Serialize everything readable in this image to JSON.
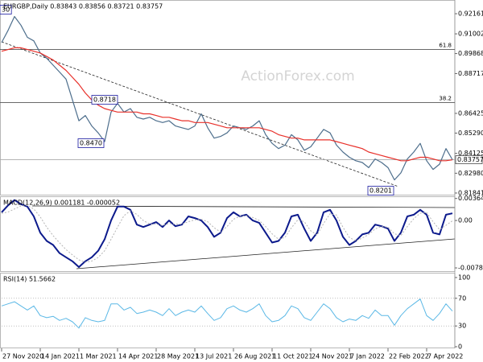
{
  "chart_data": [
    {
      "type": "line",
      "title": "EURGBP,Daily  0.83843 0.83856 0.83721 0.83757",
      "watermark": "ActionForex.com",
      "xlim": [
        0,
        70
      ],
      "ylim": [
        0.817,
        0.9295
      ],
      "yticks": [
        0.92161,
        0.91002,
        0.89868,
        0.88717,
        0.86425,
        {
          "value": 0.8529,
          "label": "0.85290"
        },
        0.84125,
        {
          "value": 0.8298,
          "label": "0.82980"
        },
        0.81841
      ],
      "last_price": 0.83757,
      "levels": [
        {
          "label": "61.8",
          "value": 0.901
        },
        {
          "label": "38.2",
          "value": 0.8705
        }
      ],
      "annotations": [
        "30",
        "0.8718",
        "0.8470",
        "0.8201"
      ],
      "series": [
        {
          "color": "#4d6e8c",
          "values": [
            0.905,
            0.912,
            0.92,
            0.915,
            0.908,
            0.906,
            0.899,
            0.896,
            0.892,
            0.888,
            0.884,
            0.872,
            0.86,
            0.863,
            0.857,
            0.853,
            0.848,
            0.865,
            0.87,
            0.865,
            0.867,
            0.862,
            0.861,
            0.862,
            0.86,
            0.859,
            0.86,
            0.857,
            0.856,
            0.855,
            0.857,
            0.864,
            0.856,
            0.85,
            0.851,
            0.853,
            0.857,
            0.856,
            0.855,
            0.857,
            0.86,
            0.852,
            0.847,
            0.844,
            0.846,
            0.852,
            0.849,
            0.843,
            0.845,
            0.85,
            0.855,
            0.853,
            0.846,
            0.842,
            0.839,
            0.837,
            0.836,
            0.833,
            0.838,
            0.836,
            0.833,
            0.826,
            0.83,
            0.838,
            0.842,
            0.847,
            0.837,
            0.832,
            0.835,
            0.844,
            0.8376
          ]
        },
        {
          "color": "#e8302a",
          "values": [
            0.9,
            0.901,
            0.902,
            0.902,
            0.901,
            0.9,
            0.899,
            0.897,
            0.895,
            0.892,
            0.889,
            0.885,
            0.881,
            0.876,
            0.872,
            0.869,
            0.867,
            0.866,
            0.865,
            0.865,
            0.865,
            0.865,
            0.864,
            0.864,
            0.863,
            0.862,
            0.862,
            0.861,
            0.86,
            0.86,
            0.859,
            0.859,
            0.859,
            0.858,
            0.857,
            0.856,
            0.856,
            0.856,
            0.856,
            0.856,
            0.856,
            0.855,
            0.854,
            0.852,
            0.851,
            0.85,
            0.85,
            0.849,
            0.849,
            0.849,
            0.849,
            0.849,
            0.848,
            0.847,
            0.846,
            0.845,
            0.844,
            0.842,
            0.841,
            0.84,
            0.839,
            0.838,
            0.837,
            0.837,
            0.838,
            0.839,
            0.839,
            0.838,
            0.837,
            0.837,
            0.8375
          ]
        }
      ]
    },
    {
      "type": "line",
      "title": "MACD(12,26,9) 0.001181 -0.000052",
      "xlim": [
        0,
        70
      ],
      "ylim": [
        -0.0085,
        0.004
      ],
      "yticks": [
        0.003641,
        {
          "value": 0,
          "label": "0.00"
        },
        -0.007839
      ],
      "series": [
        {
          "color": "#0c1a8c",
          "width": 2,
          "values": [
            0.00135,
            0.0025,
            0.00338,
            0.0027,
            0.0023,
            0.00068,
            -0.00203,
            -0.00338,
            -0.00405,
            -0.0054,
            -0.00608,
            -0.00675,
            -0.0077,
            -0.00675,
            -0.00608,
            -0.005,
            -0.0031,
            0,
            0.0023,
            0.0023,
            0.00176,
            -0.00068,
            -0.00108,
            -0.00068,
            -0.00027,
            -0.00108,
            0,
            -0.00095,
            -0.00068,
            0.00068,
            0.0004,
            0,
            -0.00108,
            -0.0027,
            -0.00203,
            0.0004,
            0.00135,
            0.00068,
            0.00095,
            0,
            -0.0004,
            -0.00203,
            -0.00365,
            -0.00338,
            -0.00203,
            0.00068,
            0.00095,
            -0.00135,
            -0.00338,
            -0.00203,
            0.00135,
            0.00176,
            0,
            -0.0027,
            -0.00405,
            -0.00338,
            -0.0023,
            -0.00203,
            -0.00068,
            -0.00095,
            -0.00135,
            -0.00338,
            -0.00203,
            0.00068,
            0.00095,
            0.00176,
            0.00095,
            -0.00203,
            -0.0023,
            0.00095,
            0.001181
          ]
        },
        {
          "color": "#b4b4b4",
          "width": 1,
          "dash": true,
          "values": [
            0.0012,
            0.0014,
            0.0019,
            0.0024,
            0.0025,
            0.0019,
            0.0006,
            -0.0011,
            -0.0025,
            -0.0037,
            -0.0048,
            -0.0057,
            -0.0065,
            -0.0069,
            -0.0067,
            -0.0061,
            -0.005,
            -0.0031,
            -0.0011,
            0.0008,
            0.0016,
            0.001,
            0,
            -0.0006,
            -0.0006,
            -0.0008,
            -0.0005,
            -0.0006,
            -0.0006,
            -0.0002,
            0.0001,
            0.0002,
            -0.0002,
            -0.0012,
            -0.0019,
            -0.001,
            0.0002,
            0.0007,
            0.0008,
            0.0005,
            0,
            -0.001,
            -0.0022,
            -0.0031,
            -0.0028,
            -0.0012,
            0.0001,
            -0.0002,
            -0.0017,
            -0.0024,
            -0.0005,
            0.0011,
            0.0009,
            -0.0011,
            -0.0028,
            -0.0034,
            -0.0029,
            -0.0023,
            -0.0014,
            -0.001,
            -0.0011,
            -0.0022,
            -0.0025,
            -0.001,
            0.0003,
            0.0012,
            0.0013,
            -0.0002,
            -0.0015,
            -0.0008,
            -5.2e-05
          ]
        }
      ]
    },
    {
      "type": "line",
      "title": "RSI(14) 51.5662",
      "xlim": [
        0,
        70
      ],
      "ylim": [
        0,
        100
      ],
      "yticks": [
        100,
        70,
        30,
        0
      ],
      "grid": true,
      "xticks": [
        {
          "value": 0,
          "label": "27 Nov 2020"
        },
        {
          "value": 6,
          "label": "14 Jan 2021"
        },
        {
          "value": 12,
          "label": "1 Mar 2021"
        },
        {
          "value": 18,
          "label": "14 Apr 2021"
        },
        {
          "value": 24,
          "label": "28 May 2021"
        },
        {
          "value": 30,
          "label": "13 Jul 2021"
        },
        {
          "value": 36,
          "label": "26 Aug 2021"
        },
        {
          "value": 42,
          "label": "11 Oct 2021"
        },
        {
          "value": 48,
          "label": "24 Nov 2021"
        },
        {
          "value": 54,
          "label": "7 Jan 2022"
        },
        {
          "value": 60,
          "label": "22 Feb 2022"
        },
        {
          "value": 66,
          "label": "7 Apr 2022"
        }
      ],
      "series": [
        {
          "color": "#5bb8e6",
          "width": 1,
          "values": [
            59,
            62,
            65,
            59,
            53,
            59,
            45,
            42,
            44,
            38,
            41,
            36,
            27,
            42,
            38,
            36,
            38,
            62,
            62,
            53,
            57,
            48,
            50,
            53,
            50,
            45,
            55,
            45,
            50,
            53,
            50,
            59,
            48,
            38,
            42,
            55,
            59,
            53,
            50,
            55,
            62,
            45,
            36,
            38,
            45,
            59,
            55,
            42,
            38,
            50,
            62,
            55,
            42,
            36,
            40,
            38,
            45,
            41,
            53,
            45,
            45,
            31,
            45,
            55,
            62,
            69,
            45,
            38,
            48,
            62,
            51.5662
          ]
        }
      ]
    }
  ]
}
